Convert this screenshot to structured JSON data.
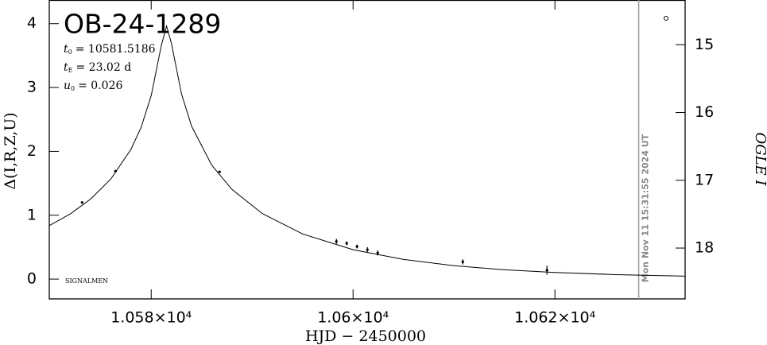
{
  "chart_data": {
    "type": "scatter",
    "title": "OB-24-1289",
    "parameters": [
      {
        "symbol": "t",
        "sub": "0",
        "text": "= 10581.5186"
      },
      {
        "symbol": "t",
        "sub": "E",
        "text": "= 23.02 d"
      },
      {
        "symbol": "u",
        "sub": "0",
        "text": "= 0.026"
      }
    ],
    "credit": "SIGNALMEN",
    "x_label": "HJD − 2450000",
    "y_label": "Δ(I,R,Z,U)",
    "y2_label": "OGLE I",
    "time_marker": {
      "x": 10628.3,
      "label": "Mon Nov 11 15:31:55 2024 UT"
    },
    "xlim": [
      10569.9,
      10632.9
    ],
    "ylim": [
      -0.31,
      4.37
    ],
    "y2lim": [
      18.75,
      14.34
    ],
    "xticks": [
      {
        "value": 10580,
        "label": "1.058×10⁴"
      },
      {
        "value": 10600,
        "label": "1.06×10⁴"
      },
      {
        "value": 10620,
        "label": "1.062×10⁴"
      }
    ],
    "yticks": [
      0,
      1,
      2,
      3,
      4
    ],
    "y2ticks": [
      15,
      16,
      17,
      18
    ],
    "points": {
      "color": "#000000",
      "x": [
        10573.15,
        10576.46,
        10586.77,
        10598.35,
        10599.37,
        10600.39,
        10601.42,
        10602.44,
        10610.87,
        10619.21
      ],
      "values": [
        1.2,
        1.69,
        1.68,
        0.59,
        0.56,
        0.51,
        0.46,
        0.41,
        0.27,
        0.14
      ],
      "errors": [
        0.02,
        0.02,
        0.01,
        0.04,
        0.03,
        0.03,
        0.04,
        0.04,
        0.04,
        0.07
      ]
    },
    "model": {
      "color": "#000000",
      "x": [
        10569.9,
        10572,
        10574,
        10576,
        10578,
        10579,
        10580,
        10581,
        10581.52,
        10582,
        10583,
        10584,
        10586,
        10588,
        10591,
        10595,
        10600,
        10605,
        10610,
        10615,
        10620,
        10626,
        10632.9
      ],
      "values": [
        0.838,
        1.023,
        1.254,
        1.567,
        2.033,
        2.377,
        2.874,
        3.658,
        3.963,
        3.693,
        2.899,
        2.394,
        1.783,
        1.404,
        1.027,
        0.707,
        0.46,
        0.308,
        0.21,
        0.146,
        0.104,
        0.07,
        0.047
      ]
    }
  }
}
